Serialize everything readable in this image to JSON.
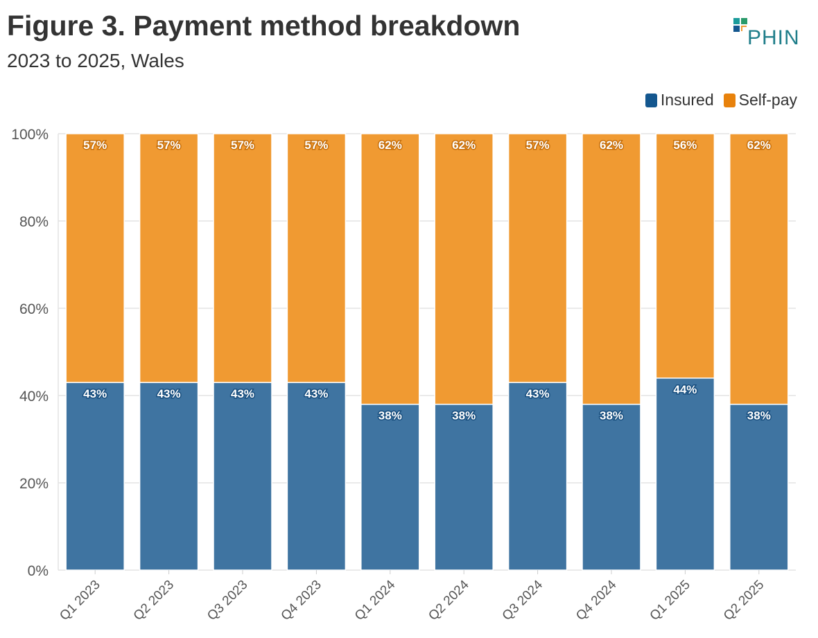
{
  "header": {
    "title": "Figure 3. Payment method breakdown",
    "subtitle": "2023 to 2025, Wales",
    "logo_text": "PHIN"
  },
  "colors": {
    "insured": "#3f74a1",
    "self_pay": "#f09a32",
    "insured_legend": "#14578f",
    "self_pay_legend": "#e8820c"
  },
  "chart_data": {
    "type": "bar",
    "stacked": true,
    "categories": [
      "Q1 2023",
      "Q2 2023",
      "Q3 2023",
      "Q4 2023",
      "Q1 2024",
      "Q2 2024",
      "Q3 2024",
      "Q4 2024",
      "Q1 2025",
      "Q2 2025"
    ],
    "series": [
      {
        "name": "Insured",
        "values": [
          43,
          43,
          43,
          43,
          38,
          38,
          43,
          38,
          44,
          38
        ],
        "labels": [
          "43%",
          "43%",
          "43%",
          "43%",
          "38%",
          "38%",
          "43%",
          "38%",
          "44%",
          "38%"
        ]
      },
      {
        "name": "Self-pay",
        "values": [
          57,
          57,
          57,
          57,
          62,
          62,
          57,
          62,
          56,
          62
        ],
        "labels": [
          "57%",
          "57%",
          "57%",
          "57%",
          "62%",
          "62%",
          "57%",
          "62%",
          "56%",
          "62%"
        ]
      }
    ],
    "ylim": [
      0,
      100
    ],
    "yticks": [
      "0%",
      "20%",
      "40%",
      "60%",
      "80%",
      "100%"
    ],
    "grid": true,
    "legend": "top-right"
  }
}
